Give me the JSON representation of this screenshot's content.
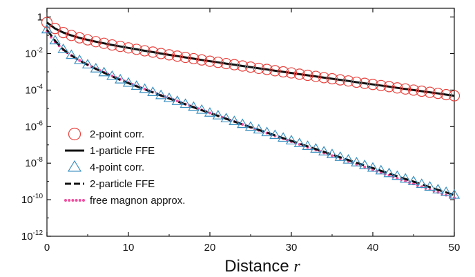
{
  "chart_data": {
    "type": "line",
    "title": "",
    "xlabel": "Distance",
    "xlabel_var": "r",
    "ylabel": "",
    "x_scale": "linear",
    "y_scale": "log",
    "xlim": [
      0,
      50
    ],
    "ylim": [
      1e-12,
      3
    ],
    "x_ticks": [
      0,
      10,
      20,
      30,
      40,
      50
    ],
    "y_ticks": [
      {
        "value": 1,
        "base": "1",
        "exp": ""
      },
      {
        "value": 0.01,
        "base": "10",
        "exp": "-2"
      },
      {
        "value": 0.0001,
        "base": "10",
        "exp": "-4"
      },
      {
        "value": 1e-06,
        "base": "10",
        "exp": "-6"
      },
      {
        "value": 1e-08,
        "base": "10",
        "exp": "-8"
      },
      {
        "value": 1e-10,
        "base": "10",
        "exp": "-10"
      },
      {
        "value": 1e-12,
        "base": "10",
        "exp": "-12"
      }
    ],
    "grid": false,
    "legend_position": "bottom-left",
    "series": [
      {
        "name": "2-point corr.",
        "style": "markers",
        "marker": "circle",
        "color": "#e8413c",
        "x_start": 0,
        "x_step": 1,
        "log10_values": [
          -0.3,
          -0.63,
          -0.85,
          -1.01,
          -1.14,
          -1.25,
          -1.35,
          -1.44,
          -1.53,
          -1.61,
          -1.69,
          -1.77,
          -1.85,
          -1.92,
          -2.0,
          -2.07,
          -2.14,
          -2.21,
          -2.28,
          -2.35,
          -2.42,
          -2.48,
          -2.55,
          -2.61,
          -2.68,
          -2.74,
          -2.81,
          -2.87,
          -2.94,
          -3.0,
          -3.06,
          -3.13,
          -3.19,
          -3.25,
          -3.32,
          -3.38,
          -3.44,
          -3.5,
          -3.57,
          -3.63,
          -3.69,
          -3.75,
          -3.81,
          -3.88,
          -3.94,
          -4.0,
          -4.06,
          -4.12,
          -4.18,
          -4.25,
          -4.31
        ]
      },
      {
        "name": "1-particle FFE",
        "style": "solid",
        "color": "#111111",
        "x_start": 0,
        "x_step": 1,
        "log10_values": [
          -0.3,
          -0.63,
          -0.85,
          -1.01,
          -1.14,
          -1.25,
          -1.35,
          -1.44,
          -1.53,
          -1.61,
          -1.69,
          -1.77,
          -1.85,
          -1.92,
          -2.0,
          -2.07,
          -2.14,
          -2.21,
          -2.28,
          -2.35,
          -2.42,
          -2.48,
          -2.55,
          -2.61,
          -2.68,
          -2.74,
          -2.81,
          -2.87,
          -2.94,
          -3.0,
          -3.06,
          -3.13,
          -3.19,
          -3.25,
          -3.32,
          -3.38,
          -3.44,
          -3.5,
          -3.57,
          -3.63,
          -3.69,
          -3.75,
          -3.81,
          -3.88,
          -3.94,
          -4.0,
          -4.06,
          -4.12,
          -4.18,
          -4.25,
          -4.31
        ]
      },
      {
        "name": "4-point corr.",
        "style": "markers",
        "marker": "triangle",
        "color": "#3a8fc0",
        "x_start": 0,
        "x_step": 1,
        "log10_values": [
          -0.7,
          -1.3,
          -1.78,
          -2.1,
          -2.38,
          -2.62,
          -2.84,
          -3.05,
          -3.25,
          -3.44,
          -3.62,
          -3.79,
          -3.96,
          -4.13,
          -4.3,
          -4.46,
          -4.62,
          -4.78,
          -4.94,
          -5.1,
          -5.26,
          -5.41,
          -5.57,
          -5.72,
          -5.88,
          -6.03,
          -6.18,
          -6.33,
          -6.48,
          -6.63,
          -6.78,
          -6.93,
          -7.08,
          -7.23,
          -7.38,
          -7.53,
          -7.68,
          -7.83,
          -7.98,
          -8.13,
          -8.27,
          -8.42,
          -8.57,
          -8.72,
          -8.87,
          -9.01,
          -9.16,
          -9.31,
          -9.46,
          -9.6,
          -9.75
        ]
      },
      {
        "name": "2-particle FFE",
        "style": "dashed",
        "color": "#111111",
        "x_start": 0,
        "x_step": 1,
        "log10_values": [
          -0.7,
          -1.3,
          -1.78,
          -2.1,
          -2.38,
          -2.62,
          -2.84,
          -3.05,
          -3.25,
          -3.44,
          -3.62,
          -3.79,
          -3.96,
          -4.13,
          -4.3,
          -4.46,
          -4.62,
          -4.78,
          -4.94,
          -5.1,
          -5.26,
          -5.41,
          -5.57,
          -5.72,
          -5.88,
          -6.03,
          -6.18,
          -6.33,
          -6.48,
          -6.63,
          -6.78,
          -6.93,
          -7.08,
          -7.23,
          -7.38,
          -7.53,
          -7.68,
          -7.83,
          -7.98,
          -8.13,
          -8.27,
          -8.42,
          -8.57,
          -8.72,
          -8.87,
          -9.01,
          -9.16,
          -9.31,
          -9.46,
          -9.6,
          -9.75
        ]
      },
      {
        "name": "free magnon approx.",
        "style": "dotted",
        "color": "#f04fa0",
        "x_start": 0,
        "x_step": 0.5,
        "log10_values": [
          -0.8,
          -1.1,
          -1.36,
          -1.58,
          -1.78,
          -1.95,
          -2.11,
          -2.25,
          -2.38,
          -2.5,
          -2.61,
          -2.72,
          -2.83,
          -2.93,
          -3.03,
          -3.13,
          -3.23,
          -3.32,
          -3.41,
          -3.5,
          -3.59,
          -3.68,
          -3.77,
          -3.86,
          -3.94,
          -4.03,
          -4.11,
          -4.19,
          -4.28,
          -4.36,
          -4.44,
          -4.52,
          -4.6,
          -4.69,
          -4.77,
          -4.85,
          -4.93,
          -5.01,
          -5.09,
          -5.17,
          -5.25,
          -5.33,
          -5.41,
          -5.49,
          -5.57,
          -5.65,
          -5.72,
          -5.8,
          -5.88,
          -5.96,
          -6.04,
          -6.12,
          -6.2,
          -6.27,
          -6.35,
          -6.43,
          -6.51,
          -6.59,
          -6.66,
          -6.74,
          -6.82,
          -6.9,
          -6.97,
          -7.05,
          -7.13,
          -7.21,
          -7.28,
          -7.36,
          -7.44,
          -7.52,
          -7.59,
          -7.67,
          -7.75,
          -7.83,
          -7.9,
          -7.98,
          -8.06,
          -8.13,
          -8.21,
          -8.29,
          -8.37,
          -8.44,
          -8.52,
          -8.6,
          -8.67,
          -8.75,
          -8.83,
          -8.9,
          -8.98,
          -9.06,
          -9.13,
          -9.21,
          -9.29,
          -9.37,
          -9.44,
          -9.52,
          -9.6,
          -9.67,
          -9.75,
          -9.83,
          -9.9
        ]
      }
    ]
  }
}
